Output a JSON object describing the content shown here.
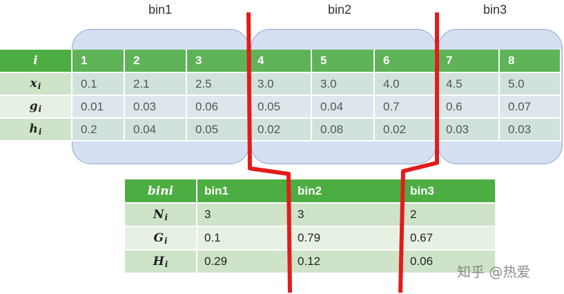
{
  "bins": [
    {
      "label": "bin1"
    },
    {
      "label": "bin2"
    },
    {
      "label": "bin3"
    }
  ],
  "top_table": {
    "rows": [
      {
        "label": "i",
        "sub": "",
        "cells": [
          "1",
          "2",
          "3",
          "4",
          "5",
          "6",
          "7",
          "8"
        ]
      },
      {
        "label": "x",
        "sub": "i",
        "cells": [
          "0.1",
          "2.1",
          "2.5",
          "3.0",
          "3.0",
          "4.0",
          "4.5",
          "5.0"
        ]
      },
      {
        "label": "g",
        "sub": "i",
        "cells": [
          "0.01",
          "0.03",
          "0.06",
          "0.05",
          "0.04",
          "0.7",
          "0.6",
          "0.07"
        ]
      },
      {
        "label": "h",
        "sub": "i",
        "cells": [
          "0.2",
          "0.04",
          "0.05",
          "0.02",
          "0.08",
          "0.02",
          "0.03",
          "0.03"
        ]
      }
    ]
  },
  "bottom_table": {
    "rows": [
      {
        "label": "bini",
        "sub": "",
        "cells": [
          "bin1",
          "bin2",
          "bin3"
        ]
      },
      {
        "label": "N",
        "sub": "i",
        "cells": [
          "3",
          "3",
          "2"
        ]
      },
      {
        "label": "G",
        "sub": "i",
        "cells": [
          "0.1",
          "0.79",
          "0.67"
        ]
      },
      {
        "label": "H",
        "sub": "i",
        "cells": [
          "0.29",
          "0.12",
          "0.06"
        ]
      }
    ]
  },
  "watermark": "知乎 @热爱",
  "colors": {
    "header_green": "#4cae42",
    "row_green_dark": "#cfe3c9",
    "row_green_light": "#e7f1e3",
    "bin_blue": "#b0c4e6",
    "split_red": "#e31b1b"
  }
}
